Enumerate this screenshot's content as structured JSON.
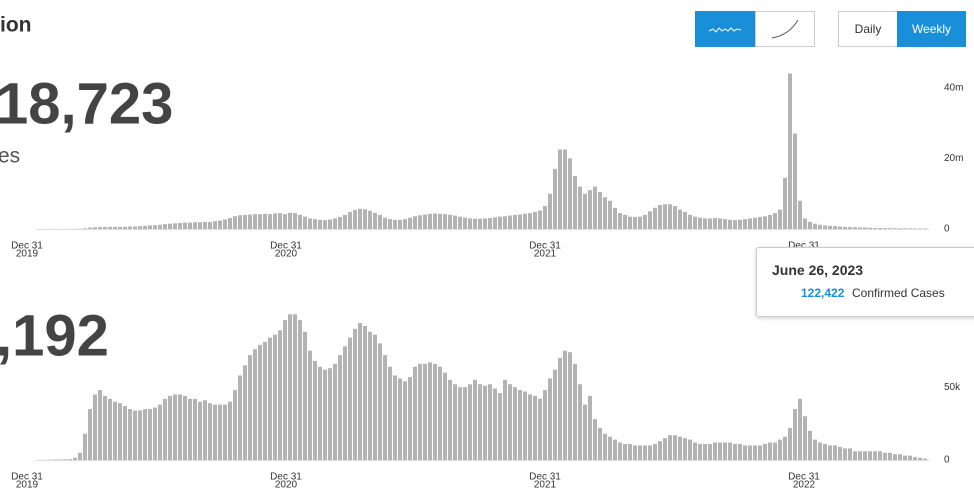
{
  "header": {
    "title": "ion"
  },
  "controls": {
    "daily": "Daily",
    "weekly": "Weekly"
  },
  "chart_data": [
    {
      "type": "bar",
      "headline": "18,723",
      "caption": "es",
      "color": "#b3b3b3",
      "values": [
        10000,
        10000,
        20000,
        20000,
        10000,
        10000,
        20000,
        50000,
        100000,
        200000,
        400000,
        500000,
        550000,
        600000,
        600000,
        600000,
        600000,
        650000,
        700000,
        700000,
        800000,
        900000,
        1000000,
        1100000,
        1200000,
        1400000,
        1500000,
        1600000,
        1700000,
        1800000,
        1800000,
        1900000,
        1900000,
        2000000,
        2000000,
        2200000,
        2400000,
        2700000,
        3100000,
        3600000,
        3900000,
        4000000,
        4100000,
        4200000,
        4200000,
        4300000,
        4200000,
        4400000,
        4500000,
        4200000,
        4600000,
        4500000,
        4000000,
        3500000,
        3000000,
        2800000,
        2600000,
        2500000,
        2700000,
        3000000,
        3400000,
        4000000,
        4800000,
        5400000,
        5700000,
        5600000,
        5200000,
        4600000,
        4000000,
        3200000,
        2800000,
        2600000,
        2600000,
        2800000,
        3200000,
        3600000,
        3900000,
        4100000,
        4300000,
        4400000,
        4300000,
        4200000,
        4000000,
        3800000,
        3500000,
        3200000,
        3000000,
        2900000,
        2900000,
        3000000,
        3100000,
        3300000,
        3500000,
        3600000,
        3800000,
        4000000,
        4100000,
        4300000,
        4500000,
        4800000,
        5200000,
        6500000,
        10000000,
        17000000,
        22500000,
        22500000,
        20000000,
        15000000,
        12000000,
        10000000,
        11000000,
        12000000,
        10500000,
        9000000,
        8000000,
        6000000,
        4500000,
        4000000,
        3500000,
        3400000,
        3500000,
        4000000,
        5000000,
        6000000,
        6800000,
        7000000,
        7000000,
        6500000,
        5500000,
        4800000,
        4000000,
        3500000,
        3200000,
        3000000,
        3000000,
        3100000,
        3000000,
        2800000,
        2600000,
        2500000,
        2600000,
        2800000,
        3000000,
        3200000,
        3400000,
        3600000,
        4000000,
        4500000,
        5500000,
        14500000,
        44000000,
        27000000,
        8000000,
        3000000,
        2000000,
        1500000,
        1200000,
        1000000,
        900000,
        800000,
        700000,
        600000,
        550000,
        500000,
        450000,
        400000,
        350000,
        300000,
        280000,
        260000,
        240000,
        220000,
        200000,
        180000,
        160000,
        140000,
        130000,
        122422
      ],
      "ylim": [
        0,
        45000000
      ],
      "yticks": [
        0,
        {
          "value": 20000000,
          "label": "20m"
        },
        {
          "value": 40000000,
          "label": "40m"
        }
      ],
      "xticks": [
        {
          "label": "Dec 31",
          "year": "2019"
        },
        {
          "label": "Dec 31",
          "year": "2020"
        },
        {
          "label": "Dec 31",
          "year": "2021"
        },
        {
          "label": "Dec 31",
          "year": "2022"
        }
      ],
      "tooltip": {
        "date": "June 26, 2023",
        "value": "122,422",
        "label": "Confirmed Cases"
      }
    },
    {
      "type": "bar",
      "headline": ",192",
      "color": "#b3b3b3",
      "values": [
        100,
        100,
        200,
        300,
        400,
        500,
        600,
        1500,
        5000,
        18000,
        35000,
        45000,
        48000,
        44000,
        42000,
        40000,
        39000,
        37000,
        35000,
        34000,
        34000,
        35000,
        35000,
        36000,
        38000,
        42000,
        44000,
        45000,
        45000,
        44000,
        42000,
        42000,
        40000,
        41000,
        39000,
        38000,
        38000,
        38000,
        40000,
        48000,
        58000,
        65000,
        72000,
        76000,
        79000,
        81000,
        84000,
        86000,
        89000,
        96000,
        100000,
        100000,
        96000,
        88000,
        75000,
        68000,
        64000,
        62000,
        63000,
        66000,
        72000,
        78000,
        84000,
        90000,
        94000,
        92000,
        88000,
        86000,
        80000,
        72000,
        64000,
        58000,
        56000,
        54000,
        57000,
        64000,
        66000,
        66000,
        67000,
        66000,
        64000,
        60000,
        55000,
        52000,
        50000,
        50000,
        52000,
        55000,
        52000,
        51000,
        52000,
        49000,
        46000,
        55000,
        52000,
        50000,
        48000,
        47000,
        45000,
        44000,
        42000,
        48000,
        56000,
        62000,
        70000,
        75000,
        74000,
        66000,
        52000,
        38000,
        44000,
        28000,
        22000,
        18000,
        16000,
        14000,
        12000,
        11000,
        11000,
        10000,
        10000,
        10000,
        10000,
        11000,
        13000,
        15000,
        17000,
        17000,
        16000,
        15000,
        14000,
        12000,
        11000,
        11000,
        11000,
        12000,
        12000,
        12000,
        12000,
        11000,
        11000,
        10000,
        10000,
        10000,
        10000,
        11000,
        12000,
        12000,
        14000,
        16000,
        22000,
        35000,
        42000,
        30000,
        20000,
        14000,
        12000,
        11000,
        10000,
        10000,
        9000,
        8000,
        8000,
        6000,
        6000,
        6000,
        6000,
        6000,
        6000,
        5000,
        5000,
        4000,
        4000,
        3000,
        3000,
        2000,
        1500,
        1000
      ],
      "ylim": [
        0,
        105000
      ],
      "yticks": [
        0,
        {
          "value": 50000,
          "label": "50k"
        },
        {
          "value": 100000,
          "label": "100k"
        }
      ],
      "xticks": [
        {
          "label": "Dec 31",
          "year": "2019"
        },
        {
          "label": "Dec 31",
          "year": "2020"
        },
        {
          "label": "Dec 31",
          "year": "2021"
        },
        {
          "label": "Dec 31",
          "year": "2022"
        }
      ]
    }
  ]
}
